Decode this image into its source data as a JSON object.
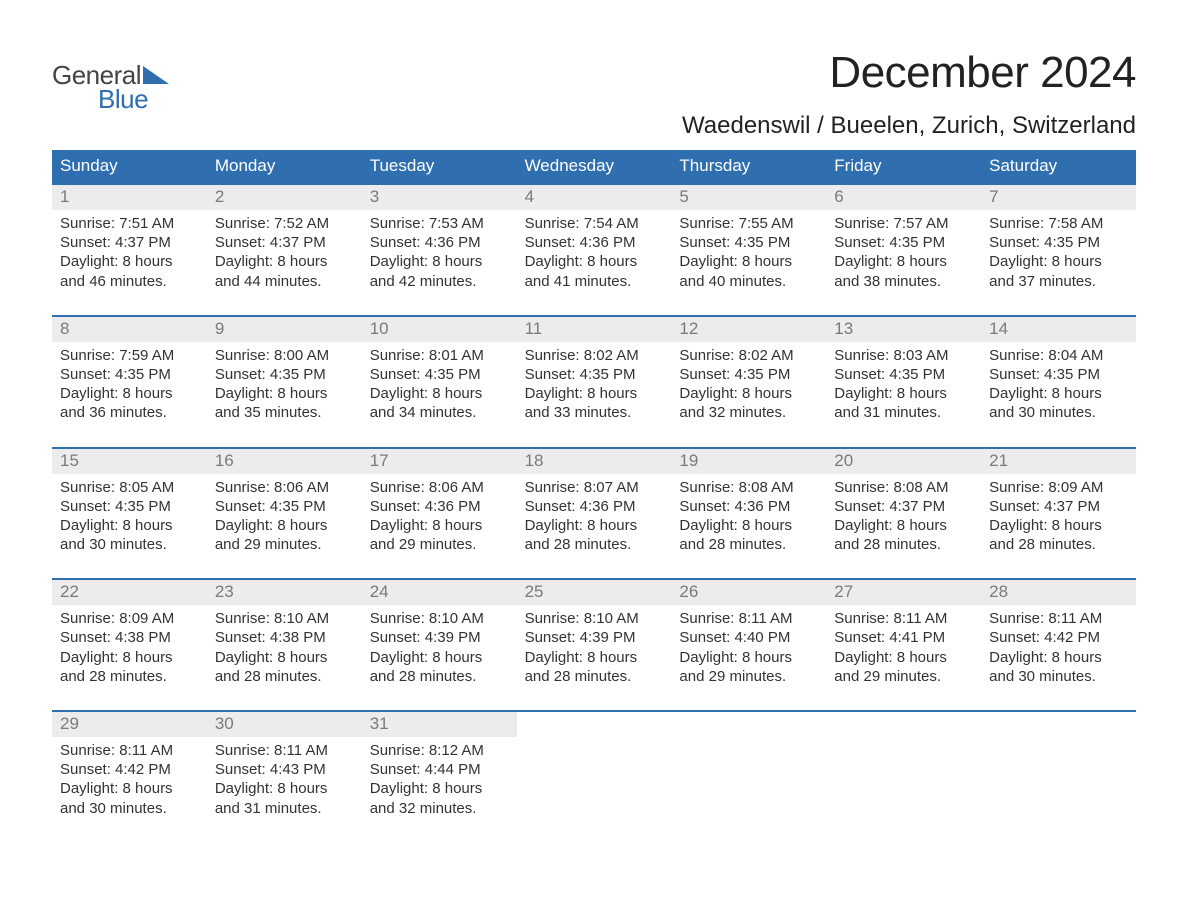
{
  "brand": {
    "word1": "General",
    "word2": "Blue",
    "triangle_color": "#2f6fb0"
  },
  "title": "December 2024",
  "location": "Waedenswil / Bueelen, Zurich, Switzerland",
  "colors": {
    "header_bg": "#2f6fb0",
    "header_text": "#ffffff",
    "daynum_bg": "#ececec",
    "daynum_text": "#7a7a7a",
    "rule": "#2f6fb0",
    "body_text": "#333333",
    "page_bg": "#ffffff"
  },
  "fonts": {
    "title_pt": 44,
    "location_pt": 24,
    "dayhead_pt": 17,
    "daynum_pt": 17,
    "body_pt": 15
  },
  "day_names": [
    "Sunday",
    "Monday",
    "Tuesday",
    "Wednesday",
    "Thursday",
    "Friday",
    "Saturday"
  ],
  "weeks": [
    [
      {
        "n": "1",
        "sunrise": "7:51 AM",
        "sunset": "4:37 PM",
        "dl1": "Daylight: 8 hours",
        "dl2": "and 46 minutes."
      },
      {
        "n": "2",
        "sunrise": "7:52 AM",
        "sunset": "4:37 PM",
        "dl1": "Daylight: 8 hours",
        "dl2": "and 44 minutes."
      },
      {
        "n": "3",
        "sunrise": "7:53 AM",
        "sunset": "4:36 PM",
        "dl1": "Daylight: 8 hours",
        "dl2": "and 42 minutes."
      },
      {
        "n": "4",
        "sunrise": "7:54 AM",
        "sunset": "4:36 PM",
        "dl1": "Daylight: 8 hours",
        "dl2": "and 41 minutes."
      },
      {
        "n": "5",
        "sunrise": "7:55 AM",
        "sunset": "4:35 PM",
        "dl1": "Daylight: 8 hours",
        "dl2": "and 40 minutes."
      },
      {
        "n": "6",
        "sunrise": "7:57 AM",
        "sunset": "4:35 PM",
        "dl1": "Daylight: 8 hours",
        "dl2": "and 38 minutes."
      },
      {
        "n": "7",
        "sunrise": "7:58 AM",
        "sunset": "4:35 PM",
        "dl1": "Daylight: 8 hours",
        "dl2": "and 37 minutes."
      }
    ],
    [
      {
        "n": "8",
        "sunrise": "7:59 AM",
        "sunset": "4:35 PM",
        "dl1": "Daylight: 8 hours",
        "dl2": "and 36 minutes."
      },
      {
        "n": "9",
        "sunrise": "8:00 AM",
        "sunset": "4:35 PM",
        "dl1": "Daylight: 8 hours",
        "dl2": "and 35 minutes."
      },
      {
        "n": "10",
        "sunrise": "8:01 AM",
        "sunset": "4:35 PM",
        "dl1": "Daylight: 8 hours",
        "dl2": "and 34 minutes."
      },
      {
        "n": "11",
        "sunrise": "8:02 AM",
        "sunset": "4:35 PM",
        "dl1": "Daylight: 8 hours",
        "dl2": "and 33 minutes."
      },
      {
        "n": "12",
        "sunrise": "8:02 AM",
        "sunset": "4:35 PM",
        "dl1": "Daylight: 8 hours",
        "dl2": "and 32 minutes."
      },
      {
        "n": "13",
        "sunrise": "8:03 AM",
        "sunset": "4:35 PM",
        "dl1": "Daylight: 8 hours",
        "dl2": "and 31 minutes."
      },
      {
        "n": "14",
        "sunrise": "8:04 AM",
        "sunset": "4:35 PM",
        "dl1": "Daylight: 8 hours",
        "dl2": "and 30 minutes."
      }
    ],
    [
      {
        "n": "15",
        "sunrise": "8:05 AM",
        "sunset": "4:35 PM",
        "dl1": "Daylight: 8 hours",
        "dl2": "and 30 minutes."
      },
      {
        "n": "16",
        "sunrise": "8:06 AM",
        "sunset": "4:35 PM",
        "dl1": "Daylight: 8 hours",
        "dl2": "and 29 minutes."
      },
      {
        "n": "17",
        "sunrise": "8:06 AM",
        "sunset": "4:36 PM",
        "dl1": "Daylight: 8 hours",
        "dl2": "and 29 minutes."
      },
      {
        "n": "18",
        "sunrise": "8:07 AM",
        "sunset": "4:36 PM",
        "dl1": "Daylight: 8 hours",
        "dl2": "and 28 minutes."
      },
      {
        "n": "19",
        "sunrise": "8:08 AM",
        "sunset": "4:36 PM",
        "dl1": "Daylight: 8 hours",
        "dl2": "and 28 minutes."
      },
      {
        "n": "20",
        "sunrise": "8:08 AM",
        "sunset": "4:37 PM",
        "dl1": "Daylight: 8 hours",
        "dl2": "and 28 minutes."
      },
      {
        "n": "21",
        "sunrise": "8:09 AM",
        "sunset": "4:37 PM",
        "dl1": "Daylight: 8 hours",
        "dl2": "and 28 minutes."
      }
    ],
    [
      {
        "n": "22",
        "sunrise": "8:09 AM",
        "sunset": "4:38 PM",
        "dl1": "Daylight: 8 hours",
        "dl2": "and 28 minutes."
      },
      {
        "n": "23",
        "sunrise": "8:10 AM",
        "sunset": "4:38 PM",
        "dl1": "Daylight: 8 hours",
        "dl2": "and 28 minutes."
      },
      {
        "n": "24",
        "sunrise": "8:10 AM",
        "sunset": "4:39 PM",
        "dl1": "Daylight: 8 hours",
        "dl2": "and 28 minutes."
      },
      {
        "n": "25",
        "sunrise": "8:10 AM",
        "sunset": "4:39 PM",
        "dl1": "Daylight: 8 hours",
        "dl2": "and 28 minutes."
      },
      {
        "n": "26",
        "sunrise": "8:11 AM",
        "sunset": "4:40 PM",
        "dl1": "Daylight: 8 hours",
        "dl2": "and 29 minutes."
      },
      {
        "n": "27",
        "sunrise": "8:11 AM",
        "sunset": "4:41 PM",
        "dl1": "Daylight: 8 hours",
        "dl2": "and 29 minutes."
      },
      {
        "n": "28",
        "sunrise": "8:11 AM",
        "sunset": "4:42 PM",
        "dl1": "Daylight: 8 hours",
        "dl2": "and 30 minutes."
      }
    ],
    [
      {
        "n": "29",
        "sunrise": "8:11 AM",
        "sunset": "4:42 PM",
        "dl1": "Daylight: 8 hours",
        "dl2": "and 30 minutes."
      },
      {
        "n": "30",
        "sunrise": "8:11 AM",
        "sunset": "4:43 PM",
        "dl1": "Daylight: 8 hours",
        "dl2": "and 31 minutes."
      },
      {
        "n": "31",
        "sunrise": "8:12 AM",
        "sunset": "4:44 PM",
        "dl1": "Daylight: 8 hours",
        "dl2": "and 32 minutes."
      },
      null,
      null,
      null,
      null
    ]
  ],
  "labels": {
    "sunrise_prefix": "Sunrise: ",
    "sunset_prefix": "Sunset: "
  }
}
